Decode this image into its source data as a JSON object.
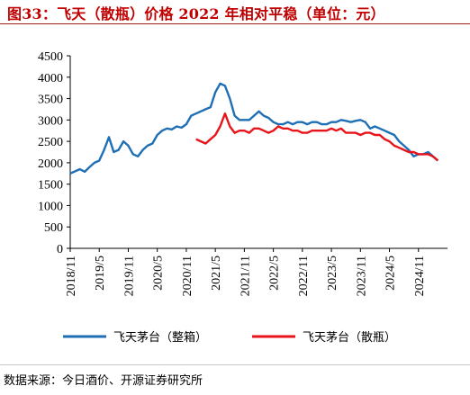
{
  "title": "图33：飞天（散瓶）价格 2022 年相对平稳（单位：元）",
  "source": "数据来源：今日酒价、开源证券研究所",
  "colors": {
    "series_boxed": "#1f6fb5",
    "series_loose": "#e8141b",
    "title": "#c00000"
  },
  "chart_data": {
    "type": "line",
    "title": "图33：飞天（散瓶）价格 2022 年相对平稳（单位：元）",
    "xlabel": "",
    "ylabel": "",
    "ylim": [
      0,
      4500
    ],
    "yticks": [
      0,
      500,
      1000,
      1500,
      2000,
      2500,
      3000,
      3500,
      4000,
      4500
    ],
    "xlim": [
      "2018-11",
      "2025-05"
    ],
    "xticks": [
      "2018/11",
      "2019/5",
      "2019/11",
      "2020/5",
      "2020/11",
      "2021/5",
      "2021/11",
      "2022/5",
      "2022/11",
      "2023/5",
      "2023/11",
      "2024/5",
      "2024/11"
    ],
    "grid": false,
    "legend_position": "bottom",
    "series": [
      {
        "name": "飞天茅台（整箱）",
        "color": "#1f6fb5",
        "x": [
          "2018-11",
          "2018-12",
          "2019-01",
          "2019-02",
          "2019-03",
          "2019-04",
          "2019-05",
          "2019-06",
          "2019-07",
          "2019-08",
          "2019-09",
          "2019-10",
          "2019-11",
          "2019-12",
          "2020-01",
          "2020-02",
          "2020-03",
          "2020-04",
          "2020-05",
          "2020-06",
          "2020-07",
          "2020-08",
          "2020-09",
          "2020-10",
          "2020-11",
          "2020-12",
          "2021-01",
          "2021-02",
          "2021-03",
          "2021-04",
          "2021-05",
          "2021-06",
          "2021-07",
          "2021-08",
          "2021-09",
          "2021-10",
          "2021-11",
          "2021-12",
          "2022-01",
          "2022-02",
          "2022-03",
          "2022-04",
          "2022-05",
          "2022-06",
          "2022-07",
          "2022-08",
          "2022-09",
          "2022-10",
          "2022-11",
          "2022-12",
          "2023-01",
          "2023-02",
          "2023-03",
          "2023-04",
          "2023-05",
          "2023-06",
          "2023-07",
          "2023-08",
          "2023-09",
          "2023-10",
          "2023-11",
          "2023-12",
          "2024-01",
          "2024-02",
          "2024-03",
          "2024-04",
          "2024-05",
          "2024-06",
          "2024-07",
          "2024-08",
          "2024-09",
          "2024-10",
          "2024-11",
          "2024-12",
          "2025-01",
          "2025-02",
          "2025-03"
        ],
        "values": [
          1750,
          1800,
          1850,
          1790,
          1900,
          2000,
          2050,
          2300,
          2600,
          2250,
          2300,
          2500,
          2400,
          2200,
          2150,
          2300,
          2400,
          2450,
          2650,
          2750,
          2800,
          2780,
          2850,
          2820,
          2900,
          3100,
          3150,
          3200,
          3250,
          3300,
          3650,
          3850,
          3800,
          3500,
          3100,
          3000,
          3000,
          3000,
          3100,
          3200,
          3100,
          3050,
          2950,
          2900,
          2900,
          2950,
          2900,
          2950,
          2950,
          2900,
          2950,
          2950,
          2900,
          2900,
          2950,
          2950,
          3000,
          2980,
          2950,
          2980,
          3000,
          2950,
          2800,
          2850,
          2800,
          2750,
          2700,
          2650,
          2500,
          2400,
          2300,
          2150,
          2200,
          2200,
          2250,
          2150,
          2050
        ]
      },
      {
        "name": "飞天茅台（散瓶）",
        "color": "#e8141b",
        "x": [
          "2021-01",
          "2021-02",
          "2021-03",
          "2021-04",
          "2021-05",
          "2021-06",
          "2021-07",
          "2021-08",
          "2021-09",
          "2021-10",
          "2021-11",
          "2021-12",
          "2022-01",
          "2022-02",
          "2022-03",
          "2022-04",
          "2022-05",
          "2022-06",
          "2022-07",
          "2022-08",
          "2022-09",
          "2022-10",
          "2022-11",
          "2022-12",
          "2023-01",
          "2023-02",
          "2023-03",
          "2023-04",
          "2023-05",
          "2023-06",
          "2023-07",
          "2023-08",
          "2023-09",
          "2023-10",
          "2023-11",
          "2023-12",
          "2024-01",
          "2024-02",
          "2024-03",
          "2024-04",
          "2024-05",
          "2024-06",
          "2024-07",
          "2024-08",
          "2024-09",
          "2024-10",
          "2024-11",
          "2024-12",
          "2025-01",
          "2025-02",
          "2025-03"
        ],
        "values": [
          2550,
          2500,
          2450,
          2550,
          2650,
          2850,
          3150,
          2850,
          2700,
          2750,
          2750,
          2700,
          2800,
          2800,
          2750,
          2700,
          2750,
          2850,
          2800,
          2800,
          2750,
          2750,
          2700,
          2700,
          2750,
          2750,
          2750,
          2750,
          2800,
          2750,
          2800,
          2700,
          2700,
          2700,
          2650,
          2700,
          2700,
          2650,
          2650,
          2550,
          2500,
          2400,
          2350,
          2300,
          2250,
          2250,
          2200,
          2200,
          2200,
          2150,
          2050
        ]
      }
    ]
  }
}
